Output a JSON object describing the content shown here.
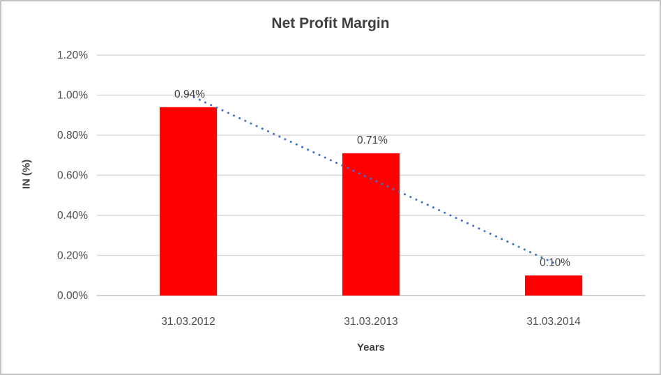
{
  "frame": {
    "background": "#ffffff",
    "border_color": "#c2c2c2"
  },
  "chart_data": {
    "type": "bar",
    "title": "Net Profit Margin",
    "xlabel": "Years",
    "ylabel": "IN (%)",
    "categories": [
      "31.03.2012",
      "31.03.2013",
      "31.03.2014"
    ],
    "series": [
      {
        "name": "Net Profit Margin",
        "values": [
          0.94,
          0.71,
          0.1
        ]
      }
    ],
    "data_labels": [
      "0.94%",
      "0.71%",
      "0.10%"
    ],
    "ylim": [
      0,
      1.2
    ],
    "yticks": [
      {
        "value": 0.0,
        "label": "0.00%"
      },
      {
        "value": 0.2,
        "label": "0.20%"
      },
      {
        "value": 0.4,
        "label": "0.40%"
      },
      {
        "value": 0.6,
        "label": "0.60%"
      },
      {
        "value": 0.8,
        "label": "0.80%"
      },
      {
        "value": 1.0,
        "label": "1.00%"
      },
      {
        "value": 1.2,
        "label": "1.20%"
      }
    ],
    "grid": true,
    "legend": "none",
    "trendline": {
      "type": "linear",
      "style": "dotted",
      "start_value": 1.003,
      "end_value": 0.163
    }
  },
  "colors": {
    "bar": "#ff0000",
    "trendline": "#4472c4",
    "gridline": "#d9d9d9",
    "axis_line": "#c0c0c0",
    "title_text": "#3f3f3f",
    "data_label_text": "#404040",
    "tick_text": "#4d4d4d"
  }
}
